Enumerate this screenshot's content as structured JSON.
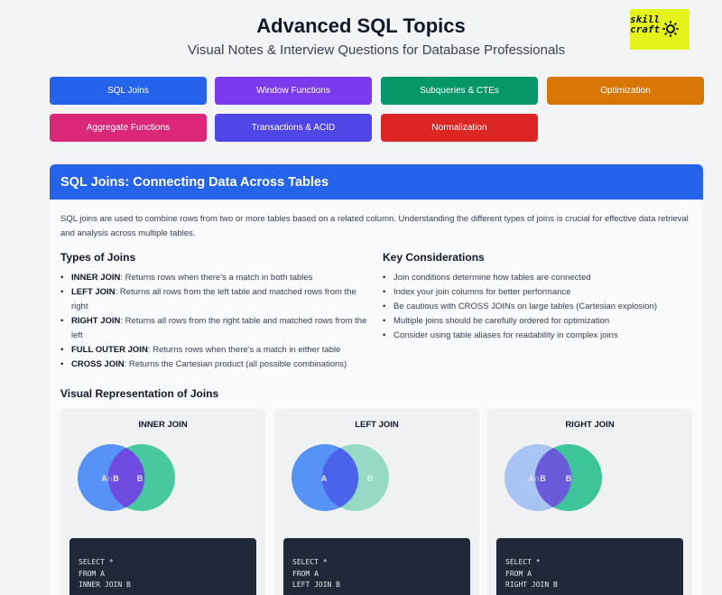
{
  "header": {
    "title": "Advanced SQL Topics",
    "subtitle": "Visual Notes & Interview Questions for Database Professionals",
    "logo_line1": "skill",
    "logo_line2": "craft"
  },
  "nav": [
    {
      "label": "SQL Joins",
      "color": "#2563eb"
    },
    {
      "label": "Window Functions",
      "color": "#7c3aed"
    },
    {
      "label": "Subqueries & CTEs",
      "color": "#059669"
    },
    {
      "label": "Optimization",
      "color": "#d97706"
    },
    {
      "label": "Aggregate Functions",
      "color": "#db2777"
    },
    {
      "label": "Transactions & ACID",
      "color": "#4f46e5"
    },
    {
      "label": "Normalization",
      "color": "#dc2626"
    }
  ],
  "section": {
    "title": "SQL Joins: Connecting Data Across Tables",
    "intro": "SQL joins are used to combine rows from two or more tables based on a related column. Understanding the different types of joins is crucial for effective data retrieval and analysis across multiple tables.",
    "types_title": "Types of Joins",
    "types": [
      {
        "term": "INNER JOIN",
        "desc": ": Returns rows when there's a match in both tables"
      },
      {
        "term": "LEFT JOIN",
        "desc": ": Returns all rows from the left table and matched rows from the right"
      },
      {
        "term": "RIGHT JOIN",
        "desc": ": Returns all rows from the right table and matched rows from the left"
      },
      {
        "term": "FULL OUTER JOIN",
        "desc": ": Returns rows when there's a match in either table"
      },
      {
        "term": "CROSS JOIN",
        "desc": ": Returns the Cartesian product (all possible combinations)"
      }
    ],
    "considerations_title": "Key Considerations",
    "considerations": [
      "Join conditions determine how tables are connected",
      "Index your join columns for better performance",
      "Be cautious with CROSS JOINs on large tables (Cartesian explosion)",
      "Multiple joins should be carefully ordered for optimization",
      "Consider using table aliases for readability in complex joins"
    ],
    "visual_title": "Visual Representation of Joins",
    "panels": [
      {
        "title": "INNER JOIN",
        "label_a": "A∩B",
        "label_b": "B",
        "code": [
          "SELECT *",
          "FROM A",
          "INNER JOIN B"
        ]
      },
      {
        "title": "LEFT JOIN",
        "label_a": "A",
        "label_b": "B",
        "code": [
          "SELECT *",
          "FROM A",
          "LEFT JOIN B"
        ]
      },
      {
        "title": "RIGHT JOIN",
        "label_a": "A∩B",
        "label_b": "B",
        "code": [
          "SELECT *",
          "FROM A",
          "RIGHT JOIN B"
        ]
      }
    ]
  },
  "colors": {
    "circle_a": "#3b82f6",
    "circle_b": "#10b981",
    "overlap": "#7c3aed"
  }
}
